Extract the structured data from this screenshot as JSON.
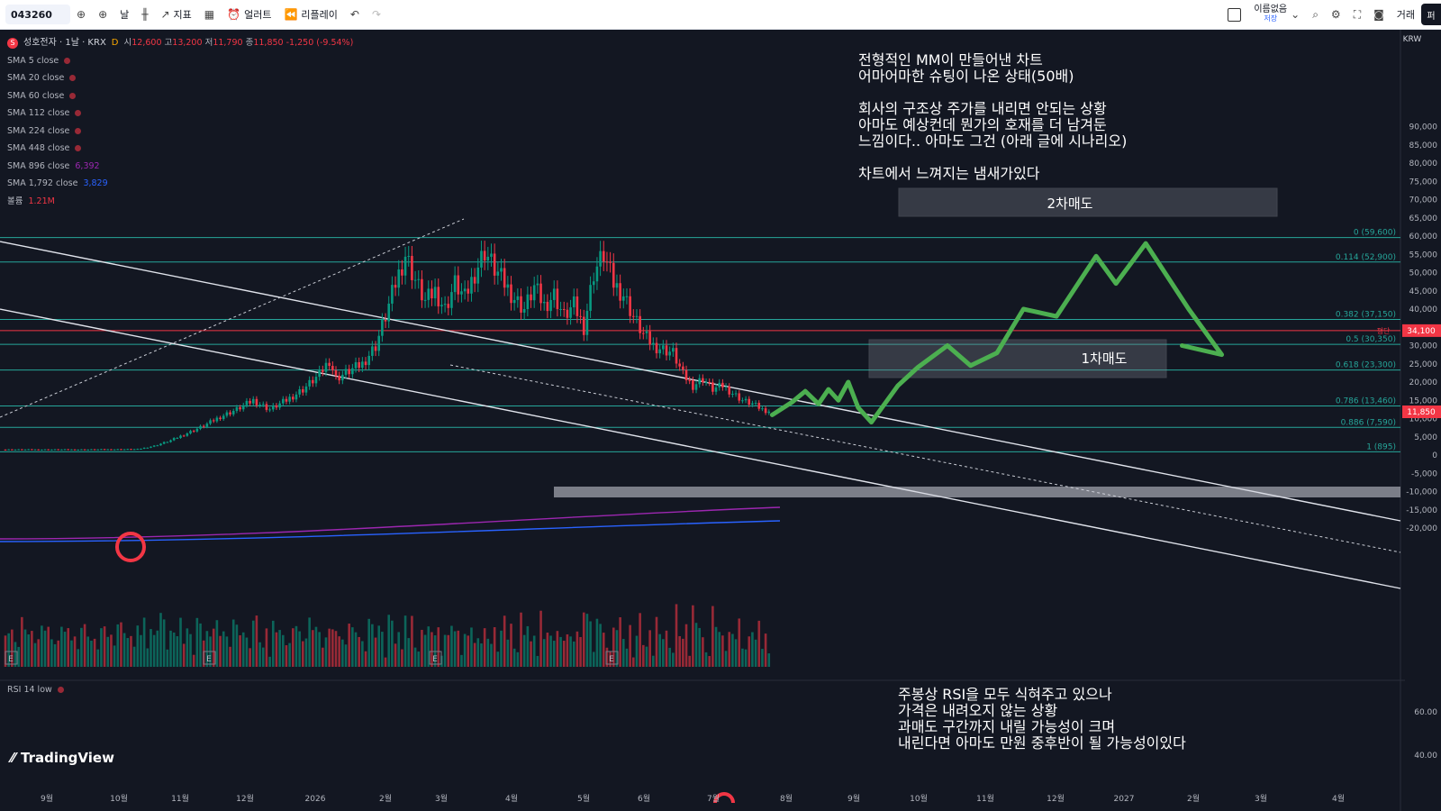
{
  "toolbar": {
    "symbol": "043260",
    "interval": "날",
    "indicators": "지표",
    "alert": "얼러트",
    "replay": "리플레이",
    "layout_name": "이름없음",
    "layout_sub": "저장",
    "trade": "거래",
    "cut_label": "퍼"
  },
  "legend": {
    "title": "성호전자 · 1날 · KRX",
    "flag": "D",
    "open_label": "시",
    "open": "12,600",
    "high_label": "고",
    "high": "13,200",
    "low_label": "저",
    "low": "11,790",
    "close_label": "종",
    "close": "11,850",
    "change": "-1,250 (-9.54%)",
    "indicators": [
      {
        "name": "SMA 5 close",
        "value": ""
      },
      {
        "name": "SMA 20 close",
        "value": ""
      },
      {
        "name": "SMA 60 close",
        "value": ""
      },
      {
        "name": "SMA 112 close",
        "value": ""
      },
      {
        "name": "SMA 224 close",
        "value": ""
      },
      {
        "name": "SMA 448 close",
        "value": ""
      },
      {
        "name": "SMA 896 close",
        "value": "6,392"
      },
      {
        "name": "SMA 1,792 close",
        "value": "3,829"
      },
      {
        "name": "볼륨",
        "value": "1.21M"
      }
    ]
  },
  "annotations": {
    "top": "전형적인 MM이 만들어낸 차트\n어마어마한 슈팅이 나온 상태(50배)\n\n회사의 구조상 주가를 내리면 안되는 상황\n아마도 예상컨데 뭔가의 호재를 더 남겨둔\n느낌이다.. 아마도 그건 (아래 글에 시나리오)\n\n차트에서 느껴지는 냄새가있다",
    "bottom": "주봉상 RSI을 모두 식혀주고 있으나\n가격은 내려오지 않는 상황\n과매도 구간까지 내릴 가능성이 크며\n내린다면 아마도 만원 중후반이 될 가능성이있다",
    "sell2": "2차매도",
    "sell1": "1차매도"
  },
  "rsi_label": "RSI 14 low",
  "brand": "TradingView",
  "colors": {
    "up": "#089981",
    "down": "#f23645",
    "bg": "#131722",
    "fib": "#26a69a",
    "projection": "#4caf50"
  },
  "chart_data": {
    "type": "candlestick",
    "currency": "KRW",
    "last_price": 11850,
    "price_labels": [
      "34,100",
      "11,850"
    ],
    "price_label_note": "평단",
    "y_ticks": [
      90000,
      85000,
      80000,
      75000,
      70000,
      65000,
      60000,
      55000,
      50000,
      45000,
      40000,
      35000,
      30000,
      25000,
      20000,
      15000,
      10000,
      5000,
      0,
      -5000,
      -10000,
      -15000,
      -20000
    ],
    "y_tick_labels": [
      "90,000",
      "85,000",
      "80,000",
      "75,000",
      "70,000",
      "65,000",
      "60,000",
      "55,000",
      "50,000",
      "45,000",
      "40,000",
      "35,000",
      "30,000",
      "25,000",
      "20,000",
      "15,000",
      "10,000",
      "5,000",
      "0",
      "-5,000",
      "-10,000",
      "-15,000",
      "-20,000"
    ],
    "rsi_ticks": [
      "60.00",
      "40.00"
    ],
    "x_labels": [
      "9월",
      "10월",
      "11월",
      "12월",
      "2026",
      "2월",
      "3월",
      "4월",
      "5월",
      "6월",
      "7월",
      "8월",
      "9월",
      "10월",
      "11월",
      "12월",
      "2027",
      "2월",
      "3월",
      "4월"
    ],
    "fib_levels": [
      {
        "label": "0 (59,600)",
        "price": 59600
      },
      {
        "label": "0.114 (52,900)",
        "price": 52900
      },
      {
        "label": "0.382 (37,150)",
        "price": 37150
      },
      {
        "label": "0.5 (30,350)",
        "price": 30350
      },
      {
        "label": "0.618 (23,300)",
        "price": 23300
      },
      {
        "label": "0.786 (13,460)",
        "price": 13460
      },
      {
        "label": "0.886 (7,590)",
        "price": 7590
      },
      {
        "label": "1 (895)",
        "price": 895
      }
    ],
    "price_path": [
      [
        0,
        1500
      ],
      [
        25,
        1500
      ],
      [
        40,
        1600
      ],
      [
        45,
        2500
      ],
      [
        50,
        4000
      ],
      [
        55,
        6000
      ],
      [
        60,
        8000
      ],
      [
        65,
        10500
      ],
      [
        70,
        12500
      ],
      [
        75,
        15000
      ],
      [
        80,
        12500
      ],
      [
        85,
        15000
      ],
      [
        90,
        18000
      ],
      [
        95,
        22000
      ],
      [
        98,
        26000
      ],
      [
        100,
        21000
      ],
      [
        104,
        23000
      ],
      [
        108,
        25000
      ],
      [
        112,
        30000
      ],
      [
        115,
        38000
      ],
      [
        118,
        47000
      ],
      [
        121,
        55000
      ],
      [
        124,
        48000
      ],
      [
        127,
        42000
      ],
      [
        130,
        45000
      ],
      [
        133,
        40000
      ],
      [
        136,
        47000
      ],
      [
        139,
        43000
      ],
      [
        142,
        50000
      ],
      [
        145,
        56000
      ],
      [
        148,
        51000
      ],
      [
        151,
        47000
      ],
      [
        154,
        43000
      ],
      [
        157,
        40000
      ],
      [
        160,
        46000
      ],
      [
        163,
        41000
      ],
      [
        166,
        44000
      ],
      [
        169,
        38000
      ],
      [
        172,
        41000
      ],
      [
        175,
        35000
      ],
      [
        178,
        50000
      ],
      [
        181,
        55000
      ],
      [
        184,
        47000
      ],
      [
        187,
        44000
      ],
      [
        190,
        38000
      ],
      [
        193,
        33000
      ],
      [
        196,
        30000
      ],
      [
        199,
        29000
      ],
      [
        202,
        28000
      ],
      [
        205,
        22000
      ],
      [
        208,
        19000
      ],
      [
        211,
        21000
      ],
      [
        214,
        18000
      ],
      [
        217,
        19000
      ],
      [
        220,
        17000
      ],
      [
        223,
        15000
      ],
      [
        226,
        14000
      ],
      [
        229,
        12500
      ],
      [
        232,
        11850
      ]
    ],
    "projection_path": [
      [
        232,
        11000
      ],
      [
        238,
        14500
      ],
      [
        242,
        17500
      ],
      [
        246,
        14000
      ],
      [
        249,
        18000
      ],
      [
        252,
        15000
      ],
      [
        255,
        20000
      ],
      [
        258,
        13000
      ],
      [
        262,
        9000
      ],
      [
        270,
        19000
      ],
      [
        276,
        24000
      ],
      [
        285,
        30000
      ],
      [
        292,
        24500
      ],
      [
        300,
        28000
      ],
      [
        308,
        40000
      ],
      [
        318,
        38000
      ],
      [
        330,
        54500
      ],
      [
        336,
        47000
      ],
      [
        345,
        58000
      ],
      [
        358,
        40000
      ],
      [
        368,
        27500
      ],
      [
        356,
        30000
      ]
    ]
  }
}
